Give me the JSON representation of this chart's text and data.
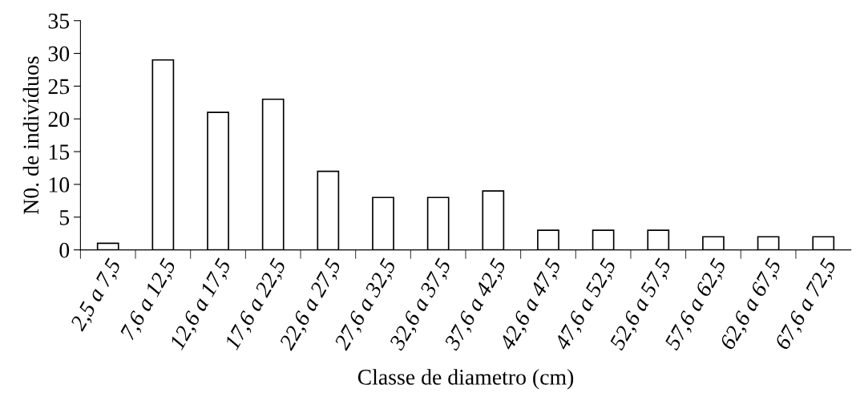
{
  "chart_data": {
    "type": "bar",
    "xlabel": "Classe de diametro (cm)",
    "ylabel": "N0. de indivíduos",
    "categories": [
      "2,5 a 7,5",
      "7,6 a 12,5",
      "12,6 a 17,5",
      "17,6 a 22,5",
      "22,6 a 27,5",
      "27,6 a 32,5",
      "32,6 a 37,5",
      "37,6 a 42,5",
      "42,6 a 47,5",
      "47,6 a 52,5",
      "52,6 a 57,5",
      "57,6 a 62,5",
      "62,6 a 67,5",
      "67,6 a 72,5"
    ],
    "values": [
      1,
      29,
      21,
      23,
      12,
      8,
      8,
      9,
      3,
      3,
      3,
      2,
      2,
      2
    ],
    "color": "#ffffff",
    "ylim": [
      0,
      35
    ],
    "yticks": [
      0,
      5,
      10,
      15,
      20,
      25,
      30,
      35
    ],
    "grid": false,
    "legend": false
  }
}
